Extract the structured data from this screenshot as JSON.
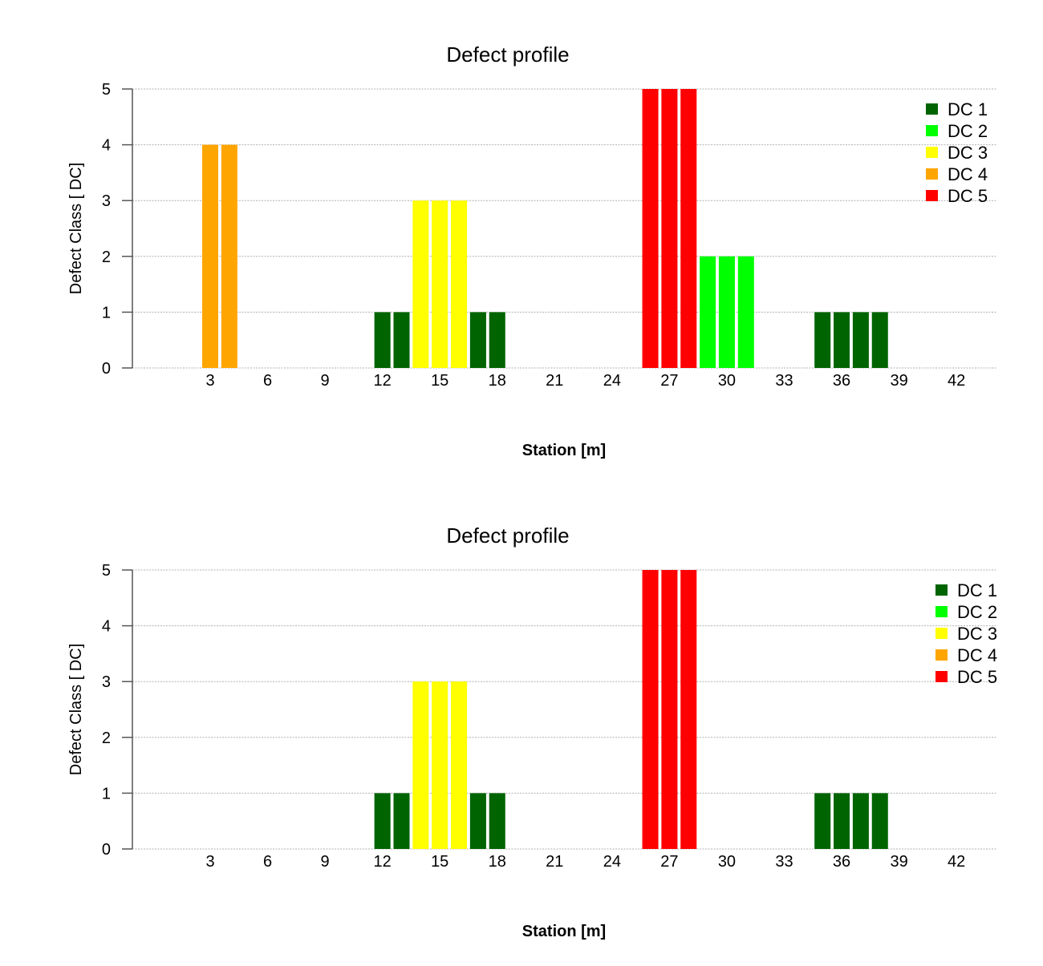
{
  "chart_data": [
    {
      "type": "bar",
      "title": "Defect profile",
      "xlabel": "Station [m]",
      "ylabel": "Defect Class [ DC]",
      "xlim": [
        -1,
        44
      ],
      "ylim": [
        0,
        5
      ],
      "xticks": [
        3,
        6,
        9,
        12,
        15,
        18,
        21,
        24,
        27,
        30,
        33,
        36,
        39,
        42
      ],
      "yticks": [
        0,
        1,
        2,
        3,
        4,
        5
      ],
      "grid": "horizontal-dotted",
      "legend_position": "top-right",
      "legend": [
        {
          "label": "DC 1",
          "color": "#006400"
        },
        {
          "label": "DC 2",
          "color": "#00ff00"
        },
        {
          "label": "DC 3",
          "color": "#ffff00"
        },
        {
          "label": "DC 4",
          "color": "#ffa500"
        },
        {
          "label": "DC 5",
          "color": "#ff0000"
        }
      ],
      "points": [
        {
          "x": 3,
          "y": 4
        },
        {
          "x": 4,
          "y": 4
        },
        {
          "x": 12,
          "y": 1
        },
        {
          "x": 13,
          "y": 1
        },
        {
          "x": 14,
          "y": 3
        },
        {
          "x": 15,
          "y": 3
        },
        {
          "x": 16,
          "y": 3
        },
        {
          "x": 17,
          "y": 1
        },
        {
          "x": 18,
          "y": 1
        },
        {
          "x": 26,
          "y": 5
        },
        {
          "x": 27,
          "y": 5
        },
        {
          "x": 28,
          "y": 5
        },
        {
          "x": 29,
          "y": 2
        },
        {
          "x": 30,
          "y": 2
        },
        {
          "x": 31,
          "y": 2
        },
        {
          "x": 35,
          "y": 1
        },
        {
          "x": 36,
          "y": 1
        },
        {
          "x": 37,
          "y": 1
        },
        {
          "x": 38,
          "y": 1
        }
      ]
    },
    {
      "type": "bar",
      "title": "Defect profile",
      "xlabel": "Station [m]",
      "ylabel": "Defect Class [ DC]",
      "xlim": [
        -1,
        44
      ],
      "ylim": [
        0,
        5
      ],
      "xticks": [
        3,
        6,
        9,
        12,
        15,
        18,
        21,
        24,
        27,
        30,
        33,
        36,
        39,
        42
      ],
      "yticks": [
        0,
        1,
        2,
        3,
        4,
        5
      ],
      "grid": "horizontal-dotted",
      "legend_position": "top-right",
      "legend": [
        {
          "label": "DC 1",
          "color": "#006400"
        },
        {
          "label": "DC 2",
          "color": "#00ff00"
        },
        {
          "label": "DC 3",
          "color": "#ffff00"
        },
        {
          "label": "DC 4",
          "color": "#ffa500"
        },
        {
          "label": "DC 5",
          "color": "#ff0000"
        }
      ],
      "points": [
        {
          "x": 12,
          "y": 1
        },
        {
          "x": 13,
          "y": 1
        },
        {
          "x": 14,
          "y": 3
        },
        {
          "x": 15,
          "y": 3
        },
        {
          "x": 16,
          "y": 3
        },
        {
          "x": 17,
          "y": 1
        },
        {
          "x": 18,
          "y": 1
        },
        {
          "x": 26,
          "y": 5
        },
        {
          "x": 27,
          "y": 5
        },
        {
          "x": 28,
          "y": 5
        },
        {
          "x": 35,
          "y": 1
        },
        {
          "x": 36,
          "y": 1
        },
        {
          "x": 37,
          "y": 1
        },
        {
          "x": 38,
          "y": 1
        }
      ]
    }
  ]
}
